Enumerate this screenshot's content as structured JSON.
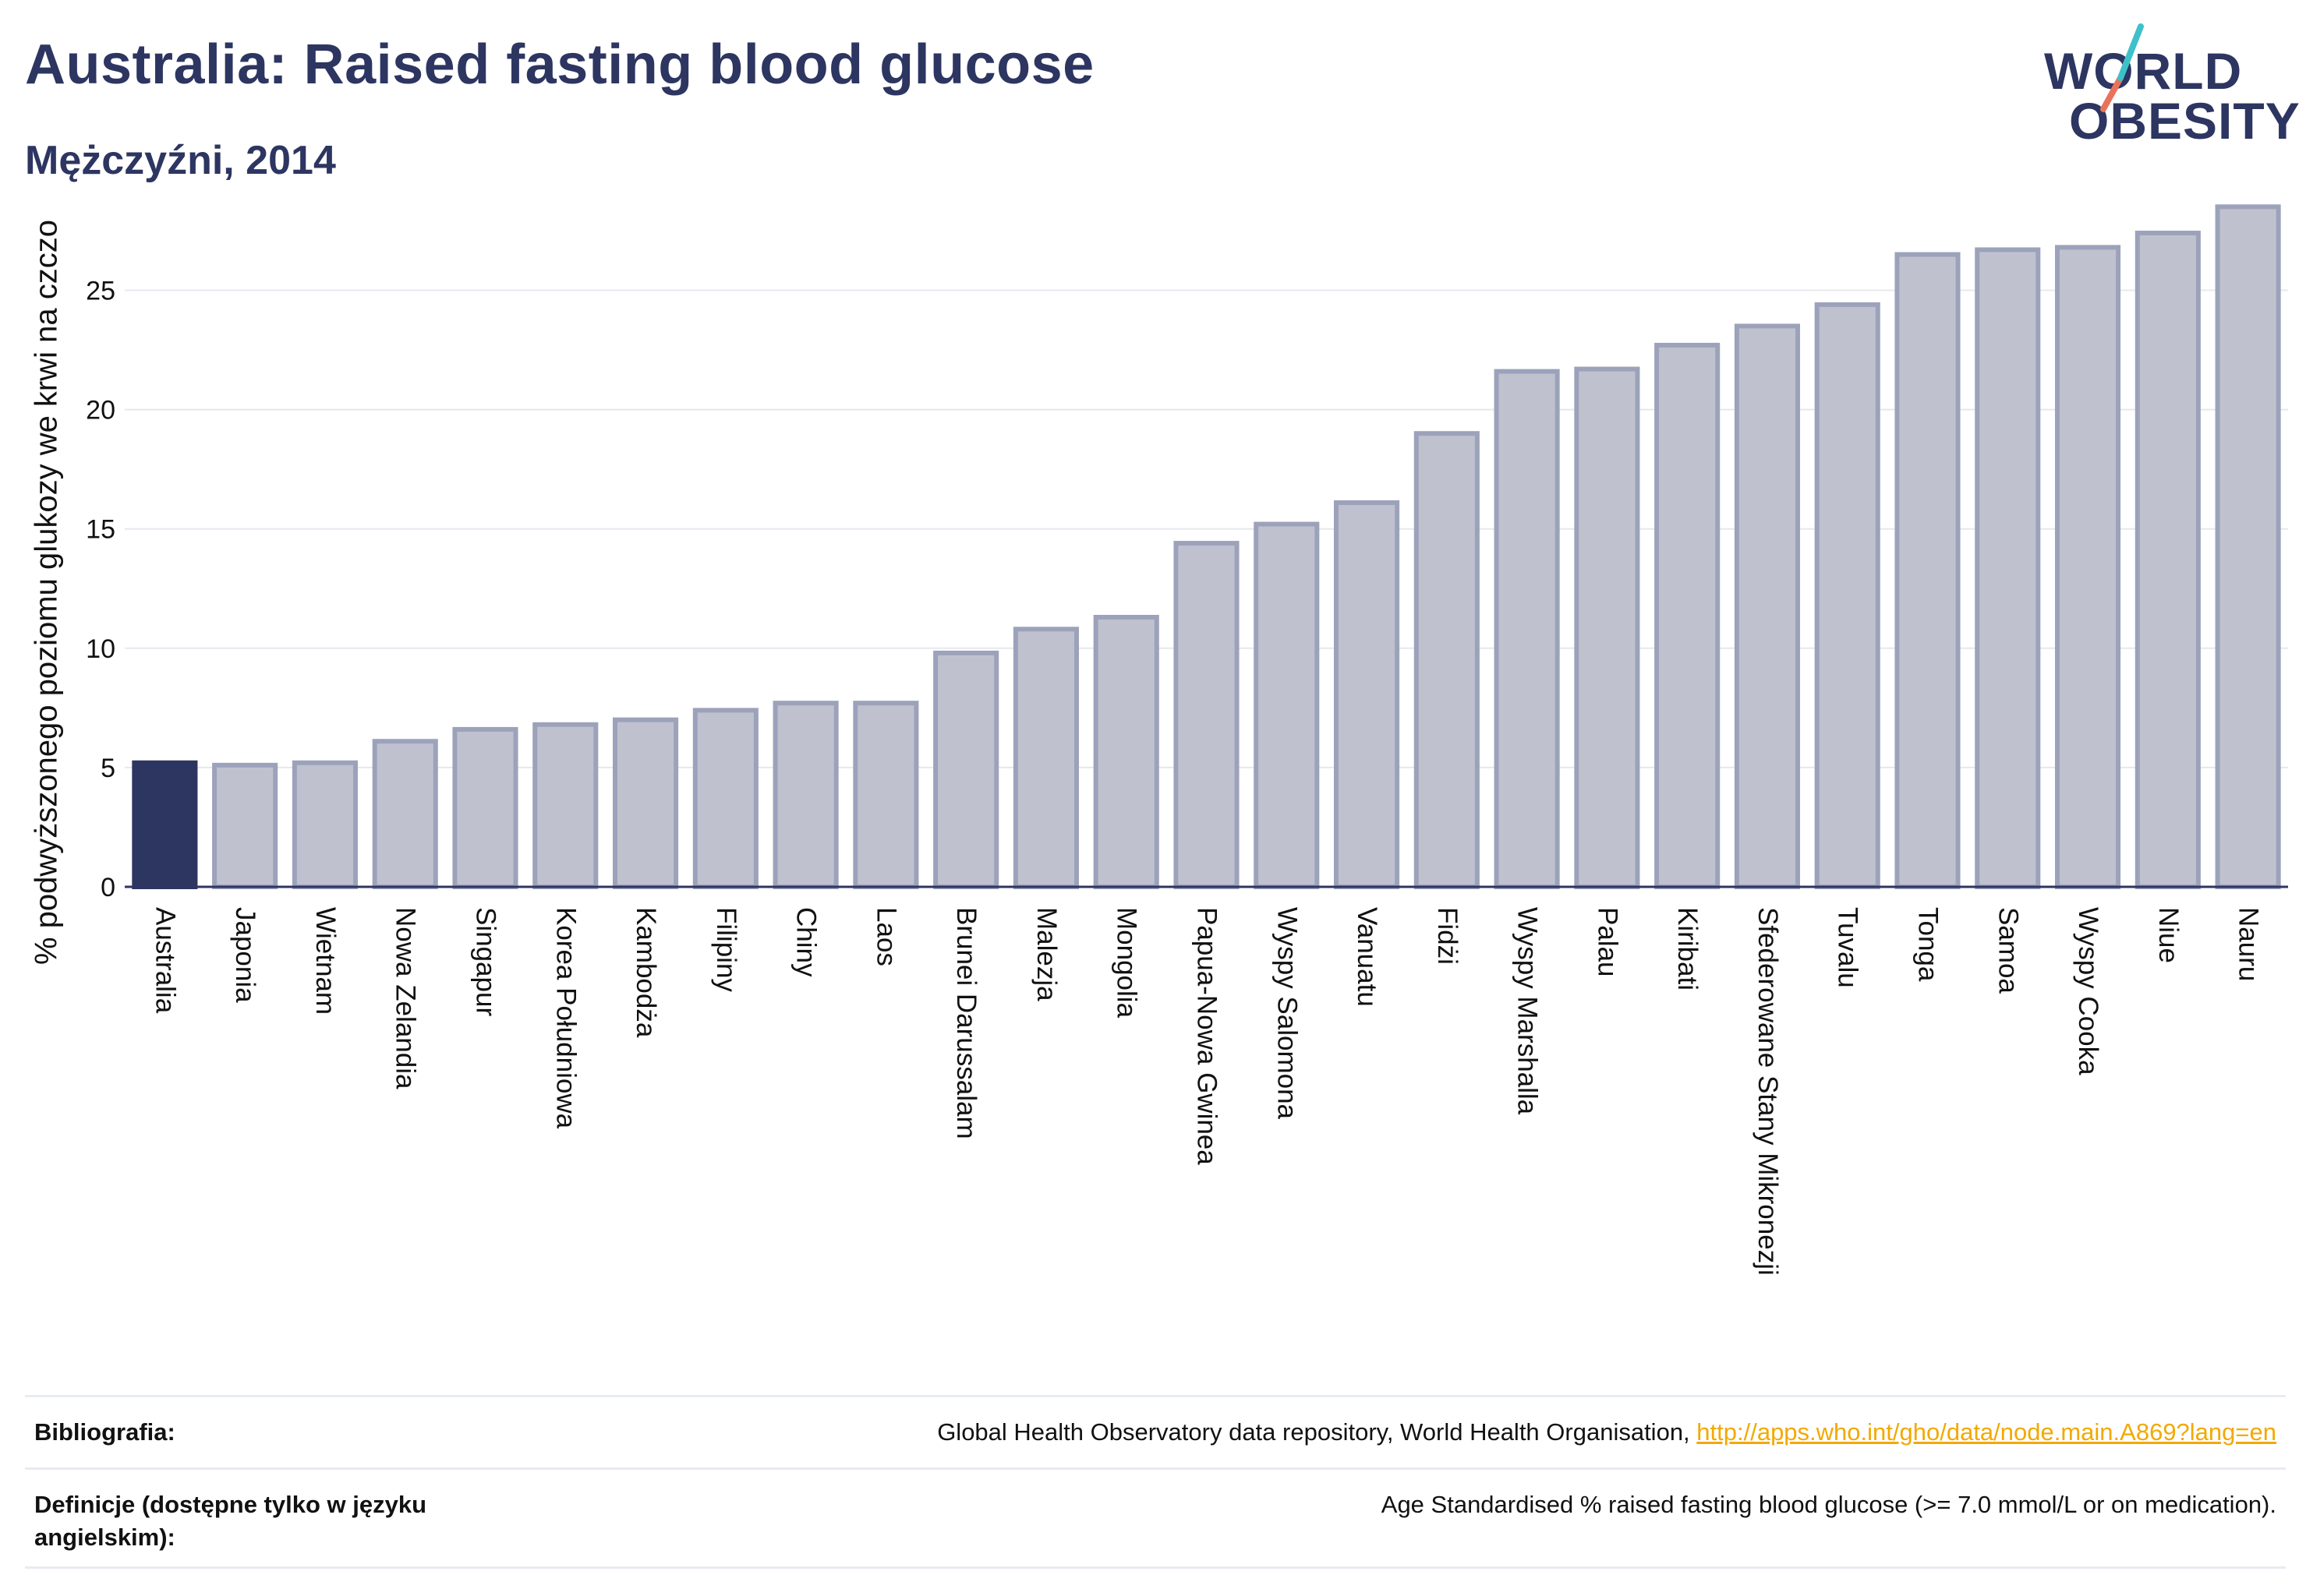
{
  "header": {
    "title": "Australia: Raised fasting blood glucose",
    "subtitle": "Mężczyźni, 2014"
  },
  "logo": {
    "line1": "WORLD",
    "line2": "OBESITY",
    "colors": {
      "text": "#2d3561",
      "slash_top": "#3ec1c9",
      "slash_bottom": "#e8735a"
    }
  },
  "chart_data": {
    "type": "bar",
    "title": "Australia: Raised fasting blood glucose",
    "subtitle": "Mężczyźni, 2014",
    "xlabel": "",
    "ylabel": "% podwyższonego poziomu glukozy we krwi na czczo",
    "ylim": [
      0,
      29
    ],
    "yticks": [
      0,
      5,
      10,
      15,
      20,
      25
    ],
    "grid": true,
    "highlight_index": 0,
    "colors": {
      "highlight": "#2d3561",
      "bar_fill": "#bfc2ce",
      "bar_stroke": "#9da2bb",
      "axis": "#2d3561",
      "grid": "#e6e8ee"
    },
    "categories": [
      "Australia",
      "Japonia",
      "Wietnam",
      "Nowa Zelandia",
      "Singapur",
      "Korea Południowa",
      "Kambodża",
      "Filipiny",
      "Chiny",
      "Laos",
      "Brunei Darussalam",
      "Malezja",
      "Mongolia",
      "Papua-Nowa Gwinea",
      "Wyspy Salomona",
      "Vanuatu",
      "Fidżi",
      "Wyspy Marshalla",
      "Palau",
      "Kiribati",
      "Sfederowane Stany Mikronezji",
      "Tuvalu",
      "Tonga",
      "Samoa",
      "Wyspy Cooka",
      "Niue",
      "Nauru"
    ],
    "values": [
      5.2,
      5.1,
      5.2,
      6.1,
      6.6,
      6.8,
      7.0,
      7.4,
      7.7,
      7.7,
      9.8,
      10.8,
      11.3,
      14.4,
      15.2,
      16.1,
      19.0,
      21.6,
      21.7,
      22.7,
      23.5,
      24.4,
      26.5,
      26.7,
      26.8,
      27.4,
      28.5
    ]
  },
  "footer": {
    "bibliography_label": "Bibliografia:",
    "bibliography_text": "Global Health Observatory data repository, World Health Organisation, ",
    "bibliography_link": "http://apps.who.int/gho/data/node.main.A869?lang=en",
    "definitions_label": "Definicje (dostępne tylko w języku angielskim):",
    "definitions_text": "Age Standardised % raised fasting blood glucose (>= 7.0 mmol/L or on medication)."
  }
}
